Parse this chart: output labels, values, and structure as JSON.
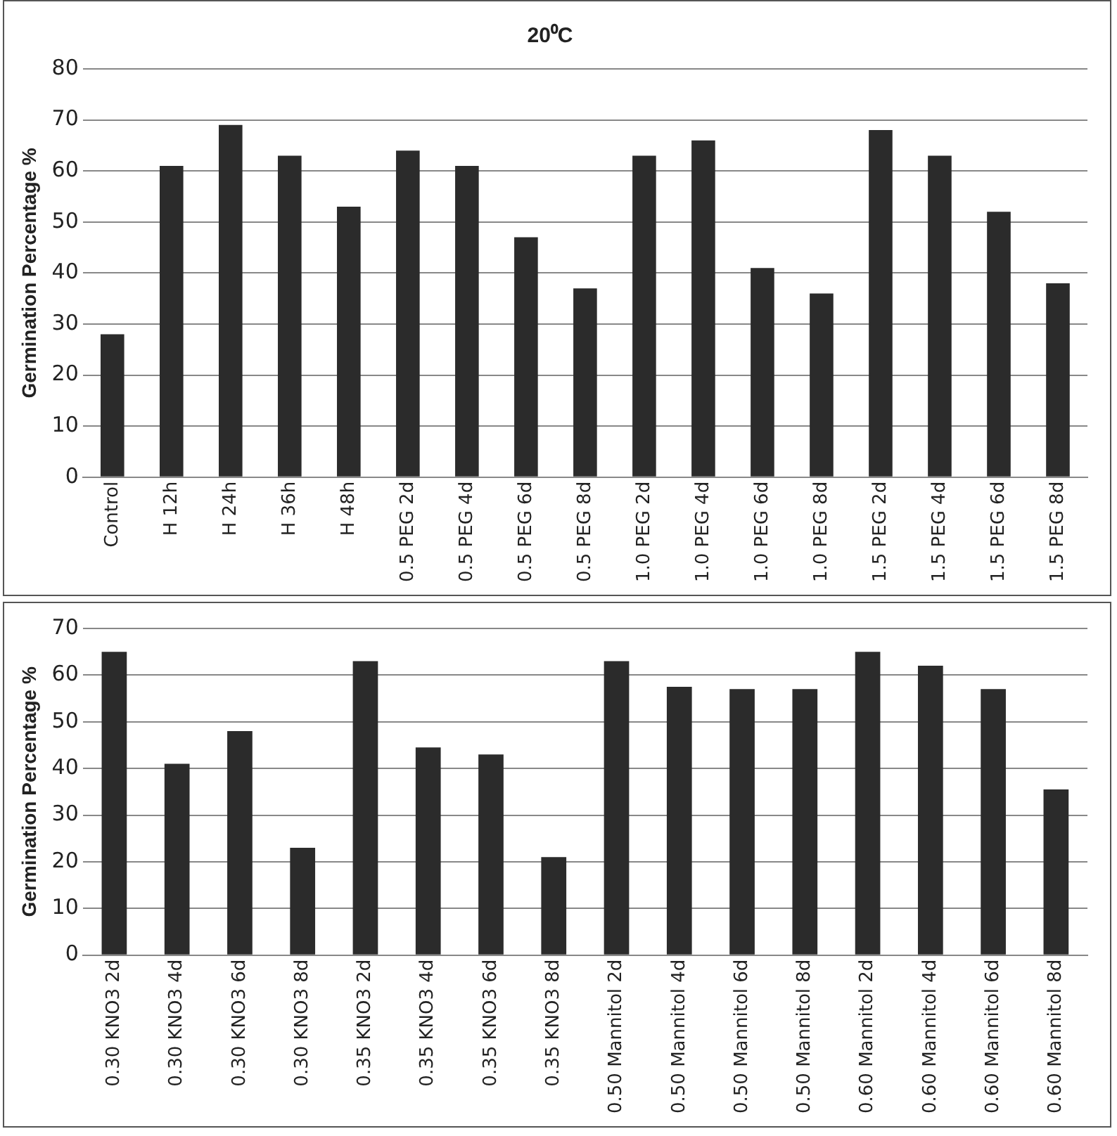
{
  "chart_data": [
    {
      "type": "bar",
      "title": "20⁰C",
      "ylabel": "Germination Percentage %",
      "categories": [
        "Control",
        "H 12h",
        "H 24h",
        "H 36h",
        "H 48h",
        "0.5 PEG 2d",
        "0.5 PEG 4d",
        "0.5 PEG 6d",
        "0.5 PEG 8d",
        "1.0 PEG 2d",
        "1.0 PEG 4d",
        "1.0 PEG 6d",
        "1.0 PEG 8d",
        "1.5 PEG 2d",
        "1.5 PEG 4d",
        "1.5 PEG 6d",
        "1.5 PEG 8d"
      ],
      "values": [
        28,
        61,
        69,
        63,
        53,
        64,
        61,
        47,
        37,
        63,
        66,
        41,
        36,
        68,
        63,
        52,
        38
      ],
      "color": "#2b2b2b",
      "ylim": [
        0,
        80
      ],
      "yticks": [
        0,
        10,
        20,
        30,
        40,
        50,
        60,
        70,
        80
      ],
      "grid": "y",
      "legend": false
    },
    {
      "type": "bar",
      "ylabel": "Germination Percentage %",
      "categories": [
        "0.30 KNO3 2d",
        "0.30 KNO3 4d",
        "0.30 KNO3 6d",
        "0.30 KNO3 8d",
        "0.35 KNO3 2d",
        "0.35 KNO3 4d",
        "0.35 KNO3 6d",
        "0.35 KNO3 8d",
        "0.50 Mannitol 2d",
        "0.50 Mannitol 4d",
        "0.50 Mannitol 6d",
        "0.50 Mannitol 8d",
        "0.60 Mannitol 2d",
        "0.60 Mannitol 4d",
        "0.60 Mannitol 6d",
        "0.60 Mannitol 8d"
      ],
      "values": [
        65,
        41,
        48,
        23,
        63,
        44.5,
        43,
        21,
        63,
        57.5,
        57,
        57,
        65,
        62,
        57,
        35.5
      ],
      "color": "#2b2b2b",
      "ylim": [
        0,
        70
      ],
      "yticks": [
        0,
        10,
        20,
        30,
        40,
        50,
        60,
        70
      ],
      "grid": "y",
      "legend": false
    }
  ]
}
